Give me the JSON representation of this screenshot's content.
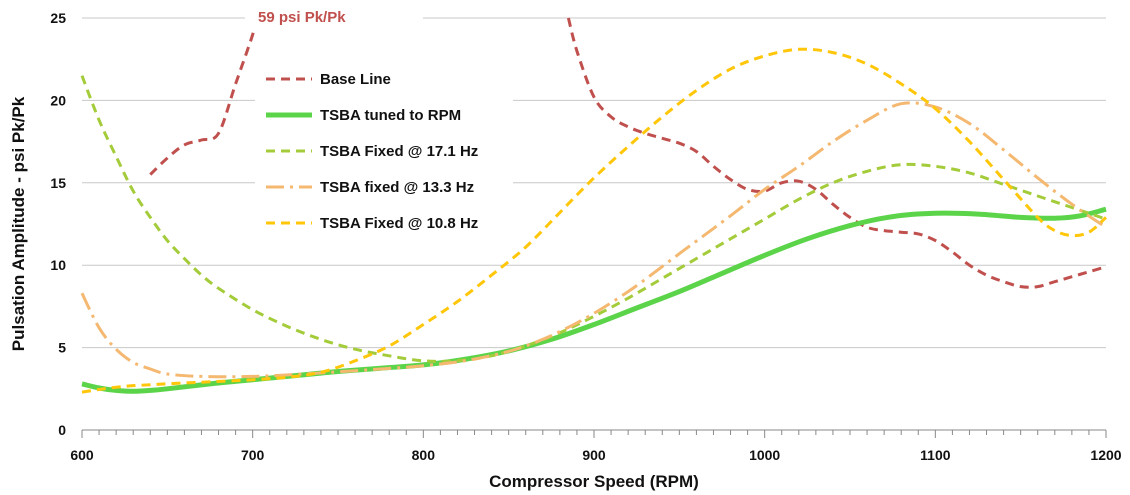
{
  "chart_data": {
    "type": "line",
    "title": "",
    "xlabel": "Compressor Speed (RPM)",
    "ylabel": "Pulsation Amplitude - psi Pk/Pk",
    "xlim": [
      600,
      1200
    ],
    "ylim": [
      0,
      25
    ],
    "x_ticks": [
      "600",
      "700",
      "800",
      "900",
      "1000",
      "1100",
      "1200"
    ],
    "y_ticks": [
      "0",
      "5",
      "10",
      "15",
      "20",
      "25"
    ],
    "grid": "horizontal",
    "legend_position": "upper-left inside",
    "annotation": {
      "text": "59 psi Pk/Pk",
      "color": "#c0504d"
    },
    "series": [
      {
        "name": "Base Line",
        "color": "#c0504d",
        "style": "dashed",
        "points": [
          [
            640,
            15.5
          ],
          [
            650,
            16.5
          ],
          [
            660,
            17.3
          ],
          [
            670,
            17.6
          ],
          [
            680,
            18.0
          ],
          [
            690,
            21.0
          ],
          [
            700,
            24.0
          ],
          [
            702,
            25.0
          ],
          [
            885,
            25.0
          ],
          [
            890,
            23.0
          ],
          [
            900,
            20.2
          ],
          [
            910,
            19.0
          ],
          [
            920,
            18.4
          ],
          [
            930,
            18.0
          ],
          [
            940,
            17.7
          ],
          [
            950,
            17.4
          ],
          [
            960,
            16.9
          ],
          [
            970,
            16.0
          ],
          [
            980,
            15.2
          ],
          [
            990,
            14.6
          ],
          [
            1000,
            14.5
          ],
          [
            1010,
            15.0
          ],
          [
            1020,
            15.1
          ],
          [
            1030,
            14.6
          ],
          [
            1040,
            13.7
          ],
          [
            1050,
            12.9
          ],
          [
            1060,
            12.3
          ],
          [
            1070,
            12.1
          ],
          [
            1080,
            12.0
          ],
          [
            1090,
            11.9
          ],
          [
            1100,
            11.5
          ],
          [
            1110,
            10.8
          ],
          [
            1120,
            10.0
          ],
          [
            1130,
            9.4
          ],
          [
            1140,
            9.0
          ],
          [
            1150,
            8.7
          ],
          [
            1160,
            8.7
          ],
          [
            1170,
            9.0
          ],
          [
            1180,
            9.3
          ],
          [
            1190,
            9.6
          ],
          [
            1200,
            9.9
          ]
        ]
      },
      {
        "name": "TSBA tuned to RPM",
        "color": "#5bd44a",
        "style": "solid",
        "points": [
          [
            600,
            2.8
          ],
          [
            610,
            2.55
          ],
          [
            620,
            2.4
          ],
          [
            630,
            2.35
          ],
          [
            640,
            2.4
          ],
          [
            650,
            2.5
          ],
          [
            675,
            2.8
          ],
          [
            700,
            3.05
          ],
          [
            725,
            3.3
          ],
          [
            750,
            3.55
          ],
          [
            775,
            3.75
          ],
          [
            800,
            3.95
          ],
          [
            825,
            4.3
          ],
          [
            850,
            4.8
          ],
          [
            875,
            5.5
          ],
          [
            900,
            6.4
          ],
          [
            925,
            7.4
          ],
          [
            950,
            8.4
          ],
          [
            975,
            9.5
          ],
          [
            1000,
            10.6
          ],
          [
            1025,
            11.6
          ],
          [
            1050,
            12.4
          ],
          [
            1075,
            12.95
          ],
          [
            1100,
            13.15
          ],
          [
            1125,
            13.1
          ],
          [
            1150,
            12.9
          ],
          [
            1170,
            12.85
          ],
          [
            1185,
            13.0
          ],
          [
            1200,
            13.4
          ]
        ]
      },
      {
        "name": "TSBA Fixed @ 17.1 Hz",
        "color": "#a4cc3a",
        "style": "dashed",
        "points": [
          [
            600,
            21.5
          ],
          [
            610,
            18.8
          ],
          [
            620,
            16.6
          ],
          [
            630,
            14.5
          ],
          [
            640,
            12.9
          ],
          [
            650,
            11.5
          ],
          [
            660,
            10.4
          ],
          [
            670,
            9.4
          ],
          [
            680,
            8.6
          ],
          [
            700,
            7.3
          ],
          [
            720,
            6.3
          ],
          [
            740,
            5.5
          ],
          [
            760,
            4.9
          ],
          [
            780,
            4.5
          ],
          [
            800,
            4.2
          ],
          [
            820,
            4.2
          ],
          [
            840,
            4.5
          ],
          [
            860,
            5.1
          ],
          [
            880,
            5.9
          ],
          [
            900,
            6.9
          ],
          [
            920,
            8.0
          ],
          [
            940,
            9.2
          ],
          [
            960,
            10.4
          ],
          [
            980,
            11.6
          ],
          [
            1000,
            12.8
          ],
          [
            1020,
            14.0
          ],
          [
            1040,
            15.0
          ],
          [
            1060,
            15.7
          ],
          [
            1080,
            16.1
          ],
          [
            1100,
            16.0
          ],
          [
            1120,
            15.6
          ],
          [
            1140,
            14.9
          ],
          [
            1160,
            14.2
          ],
          [
            1180,
            13.5
          ],
          [
            1200,
            12.8
          ]
        ]
      },
      {
        "name": "TSBA fixed @ 13.3 Hz",
        "color": "#f4b870",
        "style": "dash-dot",
        "points": [
          [
            600,
            8.3
          ],
          [
            610,
            6.2
          ],
          [
            620,
            4.9
          ],
          [
            630,
            4.1
          ],
          [
            640,
            3.7
          ],
          [
            650,
            3.4
          ],
          [
            670,
            3.25
          ],
          [
            700,
            3.25
          ],
          [
            730,
            3.4
          ],
          [
            760,
            3.6
          ],
          [
            800,
            3.9
          ],
          [
            830,
            4.3
          ],
          [
            860,
            5.1
          ],
          [
            890,
            6.5
          ],
          [
            920,
            8.4
          ],
          [
            950,
            10.7
          ],
          [
            980,
            13.0
          ],
          [
            1000,
            14.6
          ],
          [
            1020,
            16.0
          ],
          [
            1040,
            17.5
          ],
          [
            1060,
            18.8
          ],
          [
            1080,
            19.8
          ],
          [
            1100,
            19.6
          ],
          [
            1120,
            18.6
          ],
          [
            1140,
            17.0
          ],
          [
            1160,
            15.3
          ],
          [
            1180,
            13.7
          ],
          [
            1200,
            12.3
          ]
        ]
      },
      {
        "name": "TSBA Fixed @ 10.8 Hz",
        "color": "#ffc60a",
        "style": "dashed",
        "points": [
          [
            600,
            2.3
          ],
          [
            620,
            2.6
          ],
          [
            640,
            2.75
          ],
          [
            670,
            2.9
          ],
          [
            700,
            3.05
          ],
          [
            720,
            3.2
          ],
          [
            740,
            3.5
          ],
          [
            760,
            4.2
          ],
          [
            780,
            5.1
          ],
          [
            800,
            6.4
          ],
          [
            820,
            7.8
          ],
          [
            840,
            9.4
          ],
          [
            860,
            11.1
          ],
          [
            880,
            13.2
          ],
          [
            900,
            15.3
          ],
          [
            920,
            17.2
          ],
          [
            940,
            19.0
          ],
          [
            960,
            20.6
          ],
          [
            980,
            21.9
          ],
          [
            1000,
            22.7
          ],
          [
            1020,
            23.1
          ],
          [
            1040,
            22.9
          ],
          [
            1060,
            22.2
          ],
          [
            1080,
            21.0
          ],
          [
            1100,
            19.5
          ],
          [
            1120,
            17.5
          ],
          [
            1140,
            15.2
          ],
          [
            1160,
            12.9
          ],
          [
            1170,
            12.1
          ],
          [
            1180,
            11.8
          ],
          [
            1190,
            12.0
          ],
          [
            1200,
            12.9
          ]
        ]
      }
    ]
  }
}
